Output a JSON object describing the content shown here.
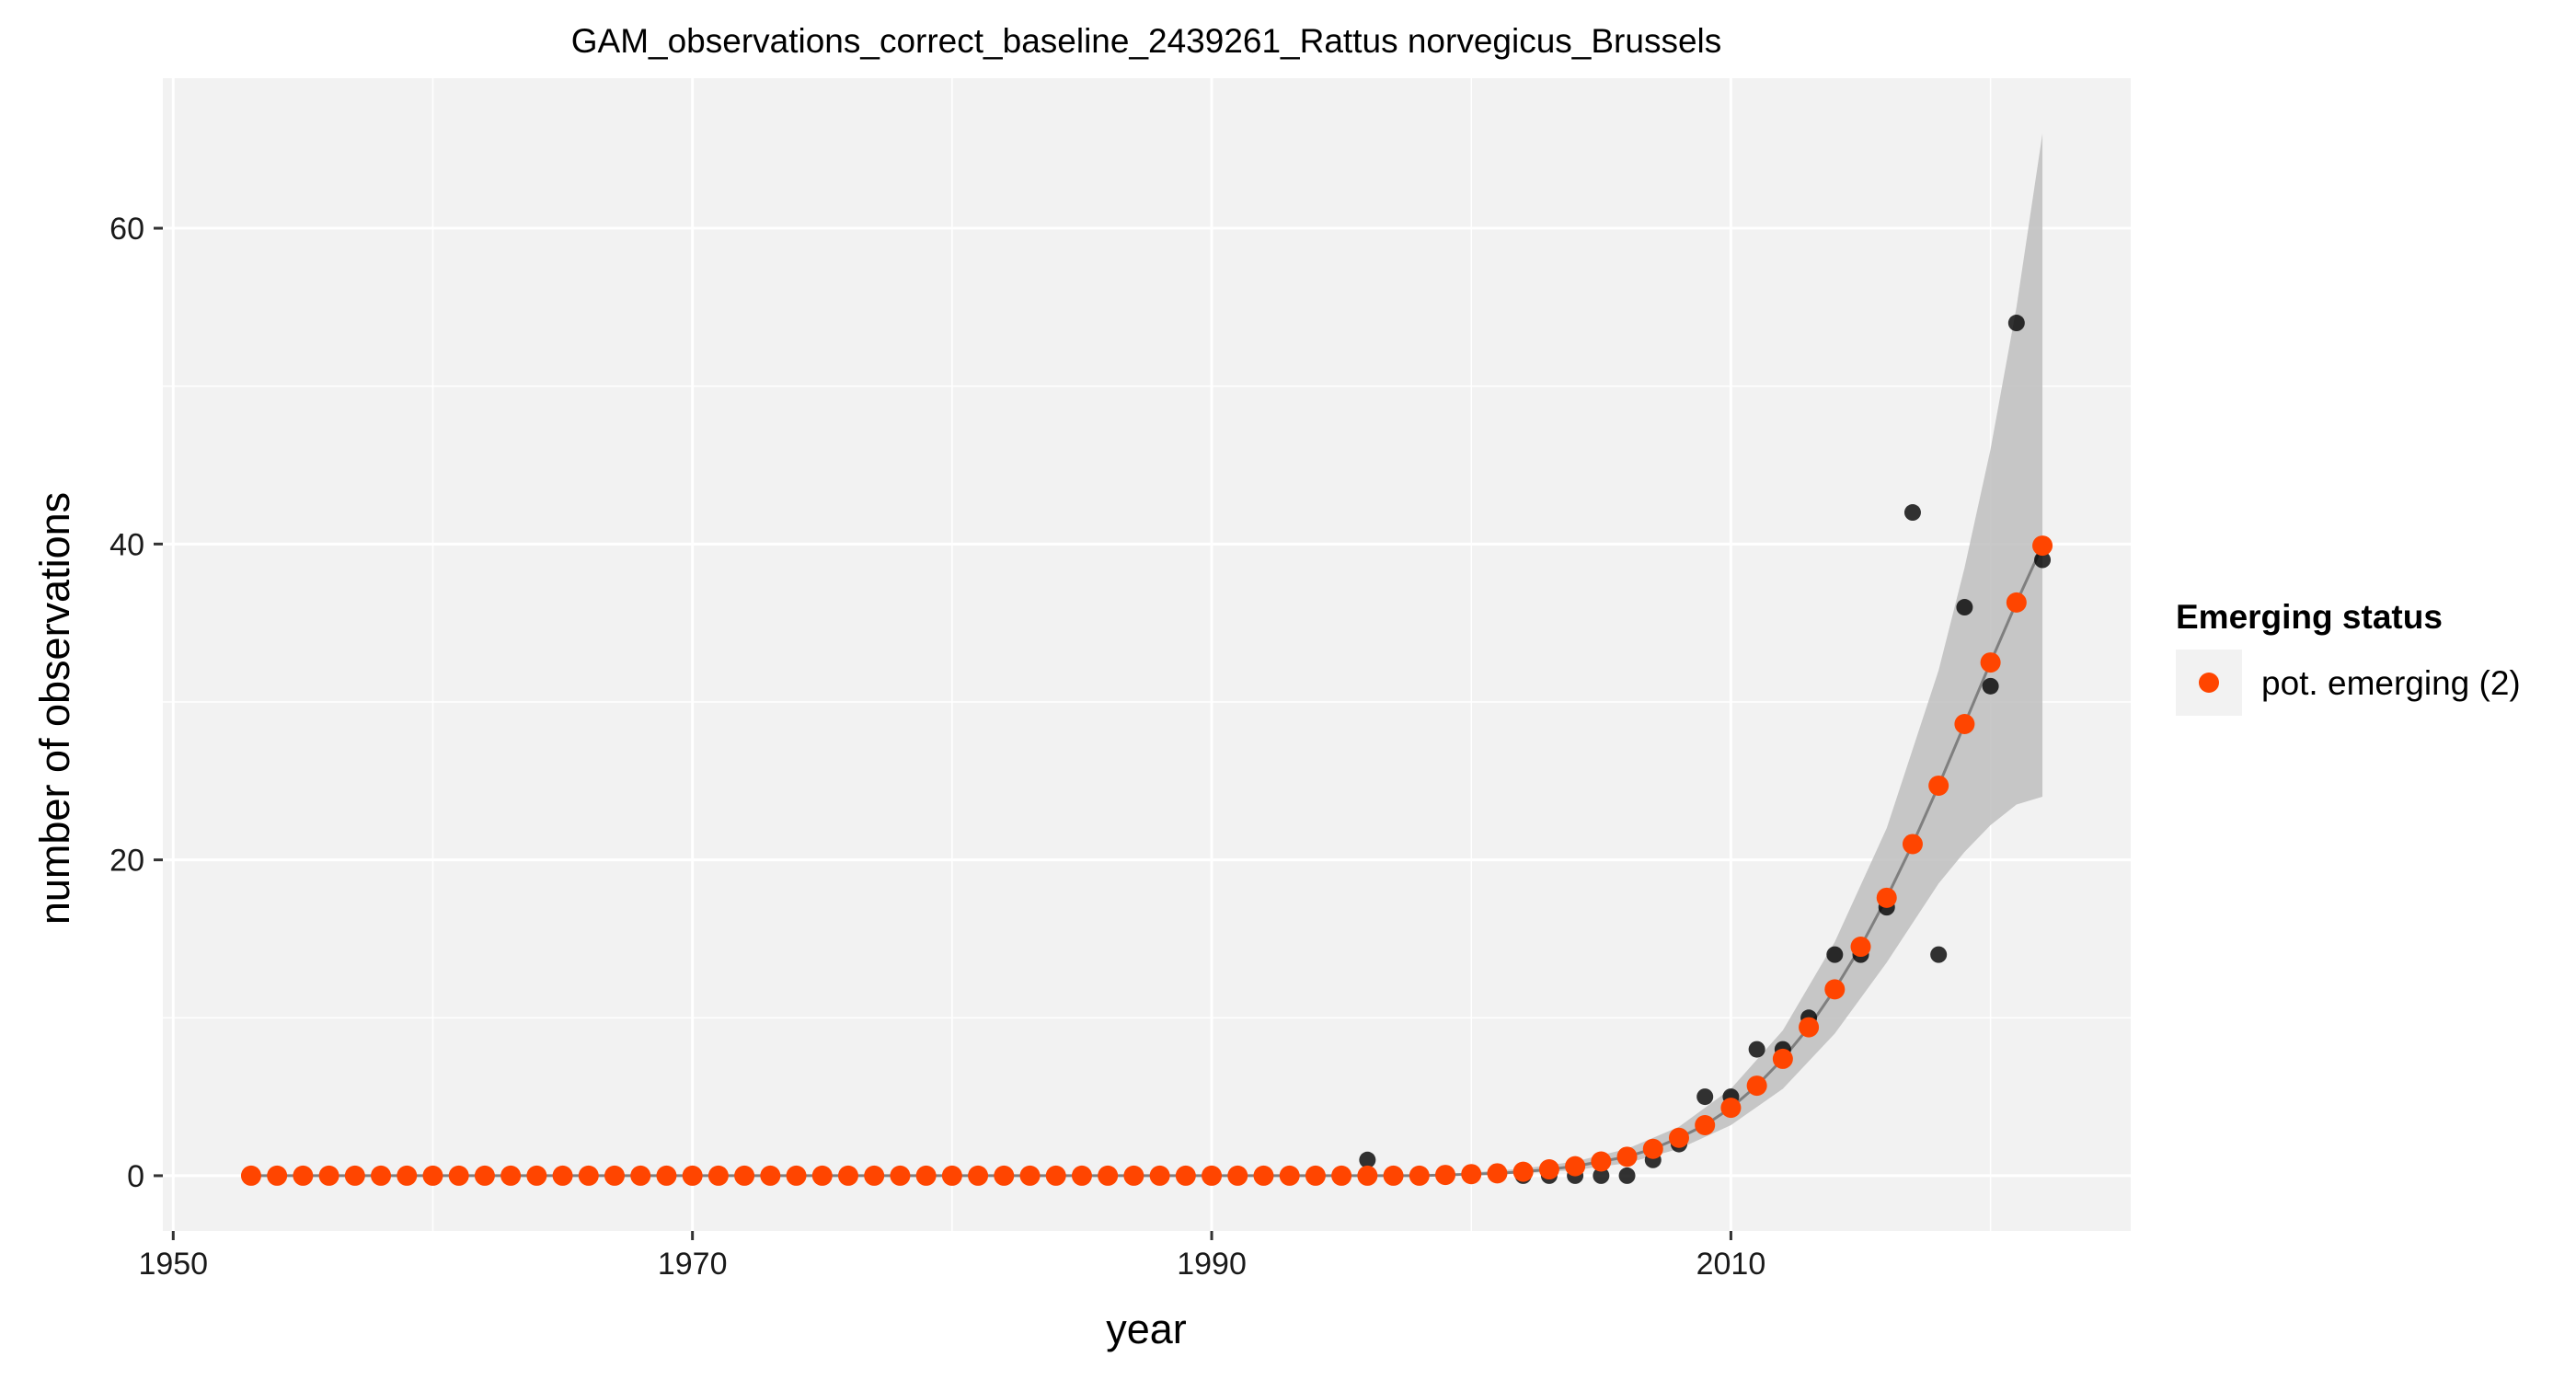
{
  "chart_data": {
    "type": "scatter",
    "title": "GAM_observations_correct_baseline_2439261_Rattus norvegicus_Brussels",
    "xlabel": "year",
    "ylabel": "number of observations",
    "xlim": [
      1949.6,
      2025.4
    ],
    "ylim": [
      -3.5,
      69.5
    ],
    "x_ticks": [
      1950,
      1970,
      1990,
      2010
    ],
    "y_ticks": [
      0,
      20,
      40,
      60
    ],
    "x_tick_labels": [
      "1950",
      "1970",
      "1990",
      "2010"
    ],
    "y_tick_labels": [
      "0",
      "20",
      "40",
      "60"
    ],
    "grid": true,
    "legend_position": "right",
    "legend": {
      "title": "Emerging status",
      "entries": [
        {
          "label": "pot. emerging (2)",
          "color": "#FF4500"
        }
      ]
    },
    "colors": {
      "panel": "#F2F2F2",
      "grid": "#FFFFFF",
      "observed": "#000000",
      "fitted": "#FF4500",
      "ribbon": "#BEBEBE",
      "line": "#7F7F7F"
    },
    "observed": {
      "x": [
        1996,
        2002,
        2003,
        2004,
        2005,
        2006,
        2007,
        2008,
        2009,
        2010,
        2011,
        2012,
        2013,
        2014,
        2015,
        2016,
        2017,
        2018,
        2019,
        2020,
        2021,
        2022
      ],
      "y": [
        1,
        0,
        0,
        0,
        0,
        0,
        1,
        2,
        5,
        5,
        8,
        8,
        10,
        14,
        14,
        17,
        42,
        14,
        36,
        31,
        54,
        39
      ]
    },
    "fitted": {
      "x": [
        1953,
        1954,
        1955,
        1956,
        1957,
        1958,
        1959,
        1960,
        1961,
        1962,
        1963,
        1964,
        1965,
        1966,
        1967,
        1968,
        1969,
        1970,
        1971,
        1972,
        1973,
        1974,
        1975,
        1976,
        1977,
        1978,
        1979,
        1980,
        1981,
        1982,
        1983,
        1984,
        1985,
        1986,
        1987,
        1988,
        1989,
        1990,
        1991,
        1992,
        1993,
        1994,
        1995,
        1996,
        1997,
        1998,
        1999,
        2000,
        2001,
        2002,
        2003,
        2004,
        2005,
        2006,
        2007,
        2008,
        2009,
        2010,
        2011,
        2012,
        2013,
        2014,
        2015,
        2016,
        2017,
        2018,
        2019,
        2020,
        2021,
        2022
      ],
      "y": [
        0,
        0,
        0,
        0,
        0,
        0,
        0,
        0,
        0,
        0,
        0,
        0,
        0,
        0,
        0,
        0,
        0,
        0,
        0,
        0,
        0,
        0,
        0,
        0,
        0,
        0,
        0,
        0,
        0,
        0,
        0,
        0,
        0,
        0,
        0,
        0,
        0,
        0,
        0,
        0,
        0,
        0,
        0,
        0,
        0,
        0,
        0.05,
        0.1,
        0.15,
        0.25,
        0.4,
        0.6,
        0.9,
        1.2,
        1.7,
        2.4,
        3.2,
        4.3,
        5.7,
        7.4,
        9.4,
        11.8,
        14.5,
        17.6,
        21.0,
        24.7,
        28.6,
        32.5,
        36.3,
        39.9
      ]
    },
    "ribbon": {
      "x": [
        2000,
        2002,
        2004,
        2006,
        2008,
        2010,
        2012,
        2014,
        2016,
        2018,
        2019,
        2020,
        2021,
        2022
      ],
      "lower": [
        0.05,
        0.15,
        0.35,
        0.8,
        1.7,
        3.2,
        5.5,
        9.0,
        13.5,
        18.5,
        20.5,
        22.2,
        23.5,
        24.0
      ],
      "upper": [
        0.2,
        0.45,
        0.9,
        1.7,
        3.1,
        5.5,
        9.2,
        14.8,
        22.0,
        32.0,
        38.5,
        46.0,
        55.0,
        66.0
      ]
    }
  }
}
